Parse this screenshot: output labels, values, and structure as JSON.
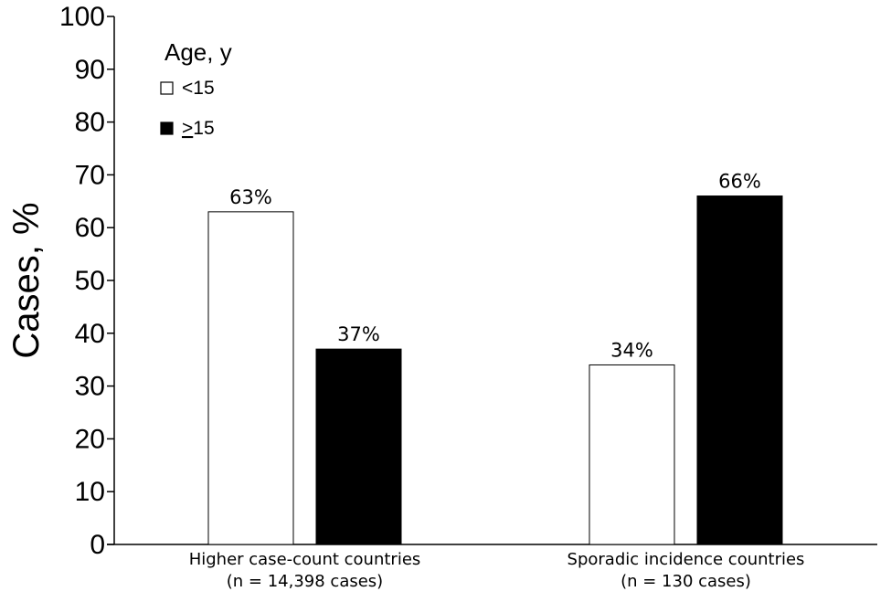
{
  "chart_data": {
    "type": "bar",
    "title": "",
    "xlabel": "",
    "ylabel": "Cases, %",
    "ylim": [
      0,
      100
    ],
    "yticks": [
      0,
      10,
      20,
      30,
      40,
      50,
      60,
      70,
      80,
      90,
      100
    ],
    "categories": [
      {
        "line1": "Higher case-count countries",
        "line2": "(n = 14,398 cases)"
      },
      {
        "line1": "Sporadic incidence countries",
        "line2": "(n = 130 cases)"
      }
    ],
    "series": [
      {
        "name": "<15",
        "values": [
          63,
          34
        ],
        "labels": [
          "63%",
          "34%"
        ],
        "fill": "#ffffff",
        "stroke": "#000000"
      },
      {
        "name": "≥15",
        "values": [
          37,
          66
        ],
        "labels": [
          "37%",
          "66%"
        ],
        "fill": "#000000",
        "stroke": "#000000"
      }
    ],
    "legend": {
      "title": "Age, y",
      "placement": "top-left"
    },
    "grid": false
  }
}
